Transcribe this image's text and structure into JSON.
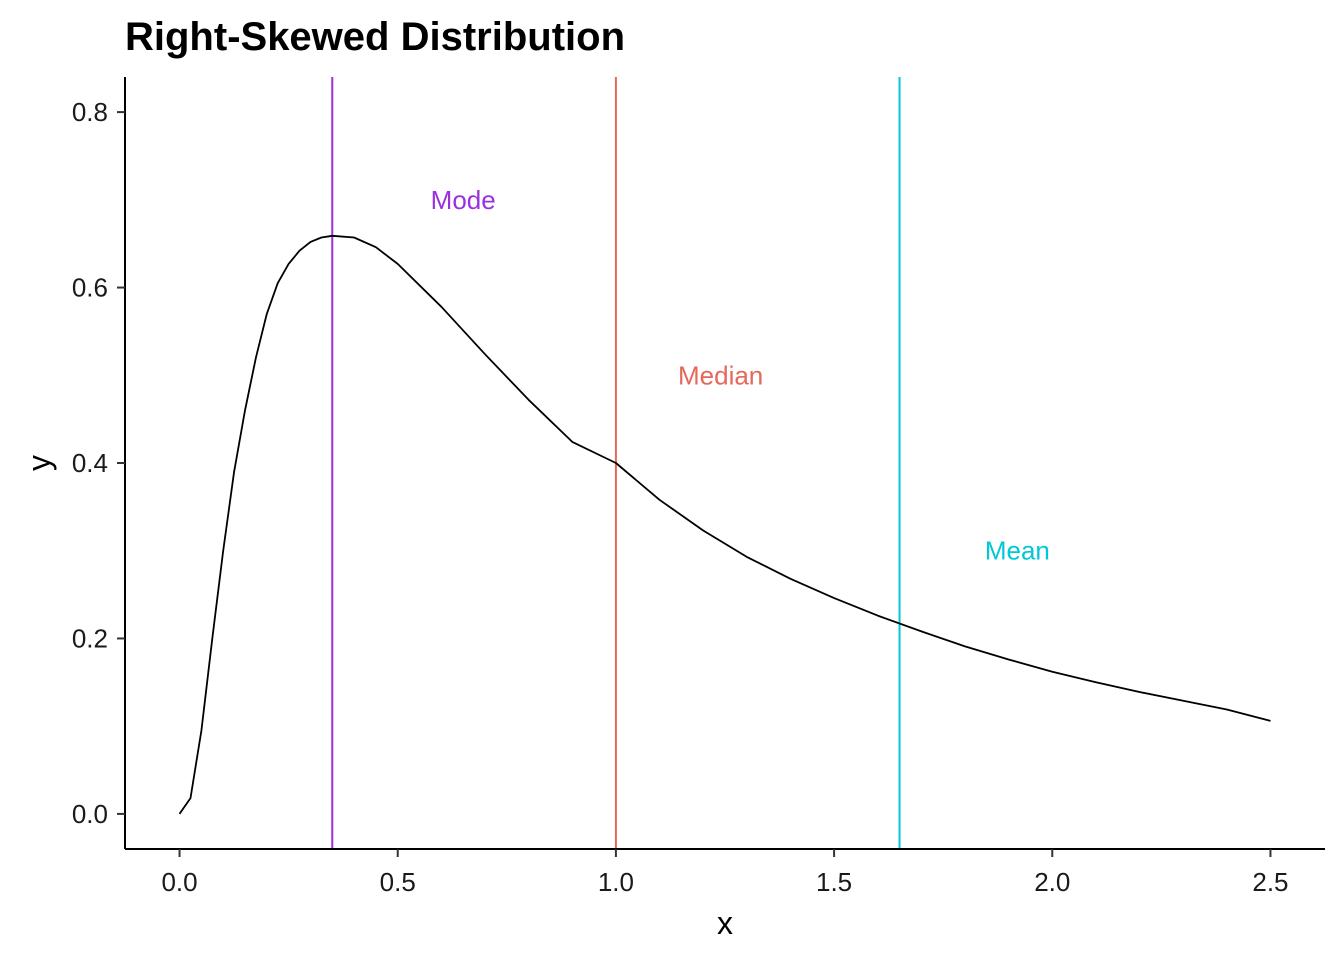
{
  "chart_data": {
    "type": "line",
    "title": "Right-Skewed Distribution",
    "xlabel": "x",
    "ylabel": "y",
    "xlim": [
      -0.125,
      2.625
    ],
    "ylim": [
      -0.04,
      0.84
    ],
    "x_ticks": [
      0.0,
      0.5,
      1.0,
      1.5,
      2.0,
      2.5
    ],
    "x_tick_labels": [
      "0.0",
      "0.5",
      "1.0",
      "1.5",
      "2.0",
      "2.5"
    ],
    "y_ticks": [
      0.0,
      0.2,
      0.4,
      0.6,
      0.8
    ],
    "y_tick_labels": [
      "0.0",
      "0.2",
      "0.4",
      "0.6",
      "0.8"
    ],
    "grid": false,
    "curve": {
      "color": "#000000",
      "x": [
        0.0,
        0.025,
        0.05,
        0.075,
        0.1,
        0.125,
        0.15,
        0.175,
        0.2,
        0.225,
        0.25,
        0.275,
        0.3,
        0.325,
        0.35,
        0.4,
        0.45,
        0.5,
        0.6,
        0.7,
        0.8,
        0.9,
        1.0,
        1.1,
        1.2,
        1.3,
        1.4,
        1.5,
        1.6,
        1.7,
        1.8,
        1.9,
        2.0,
        2.1,
        2.2,
        2.3,
        2.4,
        2.5
      ],
      "y": [
        0.0,
        0.018,
        0.095,
        0.2,
        0.3,
        0.39,
        0.46,
        0.52,
        0.57,
        0.605,
        0.627,
        0.642,
        0.652,
        0.657,
        0.659,
        0.657,
        0.646,
        0.627,
        0.578,
        0.524,
        0.472,
        0.424,
        0.4,
        0.358,
        0.323,
        0.293,
        0.268,
        0.246,
        0.226,
        0.208,
        0.191,
        0.176,
        0.162,
        0.15,
        0.139,
        0.129,
        0.119,
        0.106
      ]
    },
    "vlines": [
      {
        "name": "Mode",
        "x": 0.35,
        "color": "#9b30e0",
        "label_x": 0.65,
        "label_y": 0.7
      },
      {
        "name": "Median",
        "x": 1.0,
        "color": "#e5685a",
        "label_x": 1.24,
        "label_y": 0.5
      },
      {
        "name": "Mean",
        "x": 1.65,
        "color": "#00c8d7",
        "label_x": 1.92,
        "label_y": 0.3
      }
    ]
  }
}
